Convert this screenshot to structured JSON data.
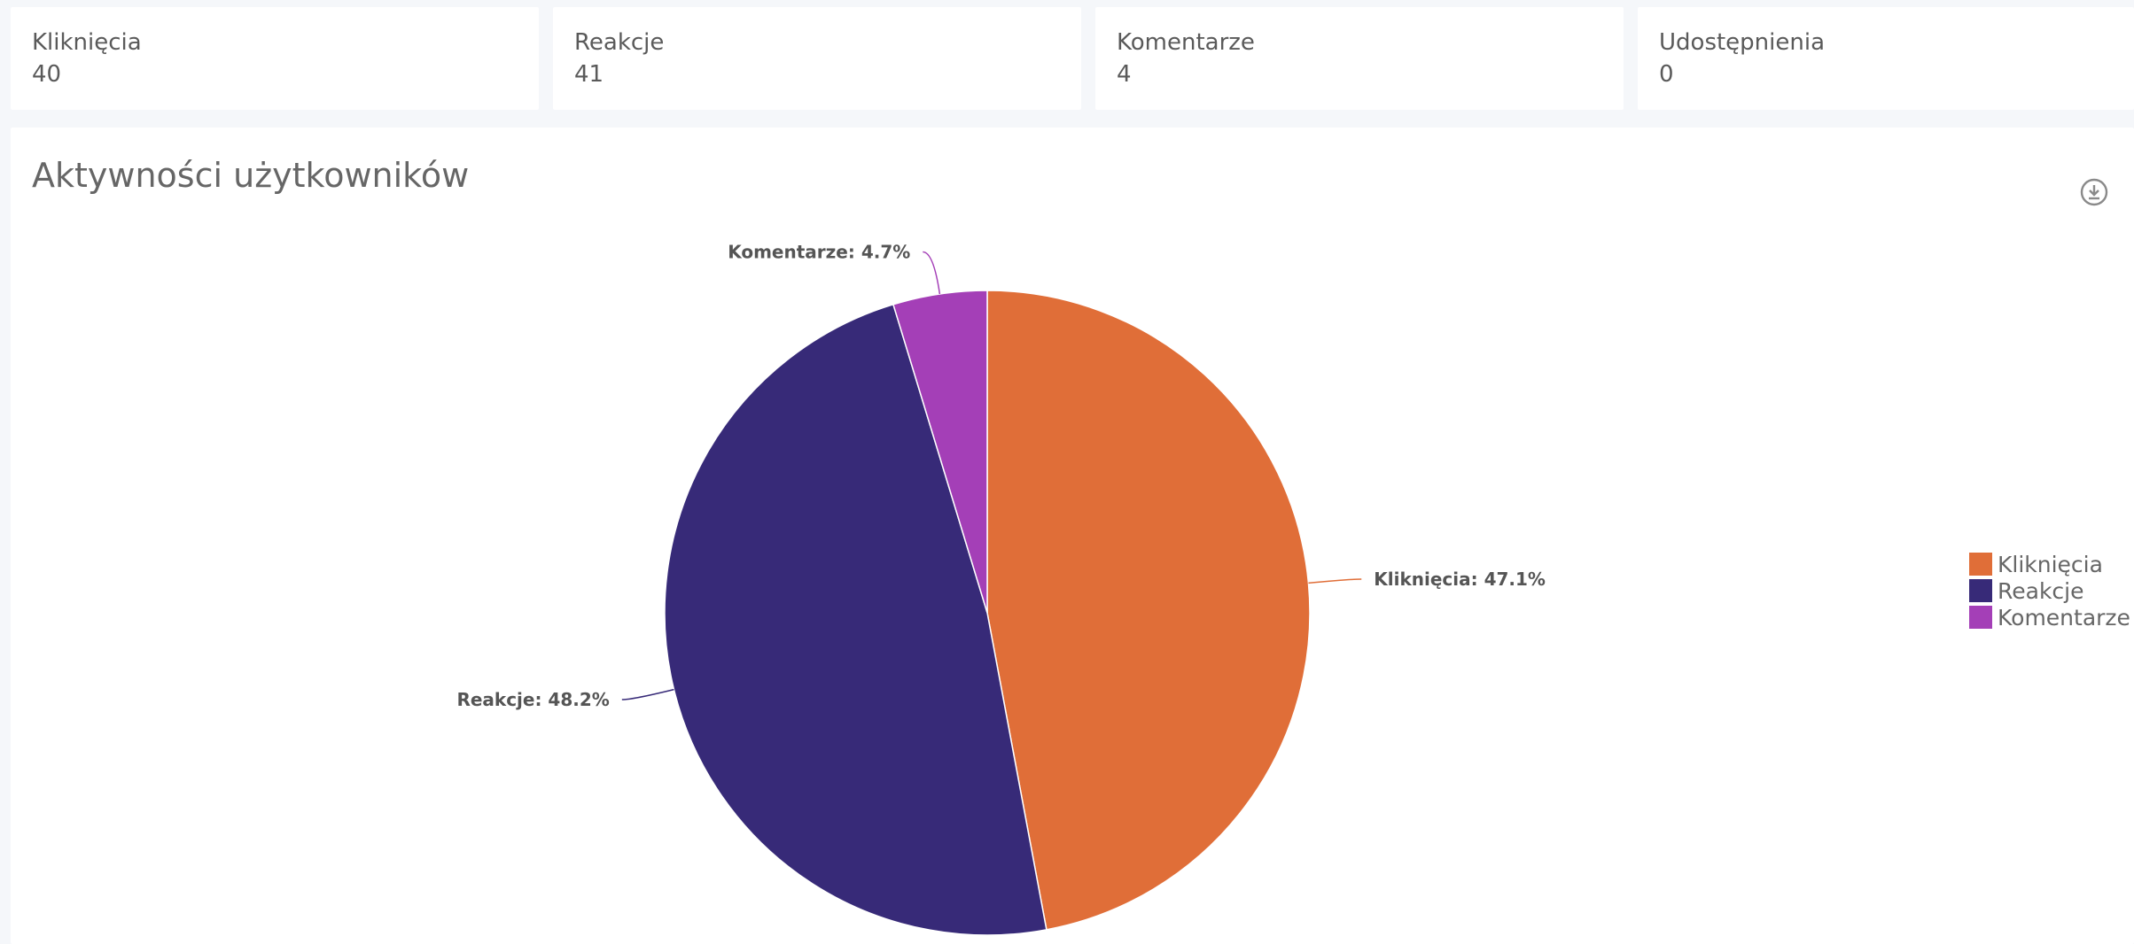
{
  "stats": [
    {
      "label": "Kliknięcia",
      "value": "40"
    },
    {
      "label": "Reakcje",
      "value": "41"
    },
    {
      "label": "Komentarze",
      "value": "4"
    },
    {
      "label": "Udostępnienia",
      "value": "0"
    }
  ],
  "chart": {
    "title": "Aktywności użytkowników",
    "download_icon": "download-icon"
  },
  "chart_data": {
    "type": "pie",
    "title": "Aktywności użytkowników",
    "categories": [
      "Kliknięcia",
      "Reakcje",
      "Komentarze"
    ],
    "values": [
      40,
      41,
      4
    ],
    "percent_labels": [
      "Kliknięcia: 47.1%",
      "Reakcje: 48.2%",
      "Komentarze: 4.7%"
    ],
    "colors": [
      "#e06e38",
      "#372a78",
      "#a43fb7"
    ],
    "legend_position": "right"
  }
}
